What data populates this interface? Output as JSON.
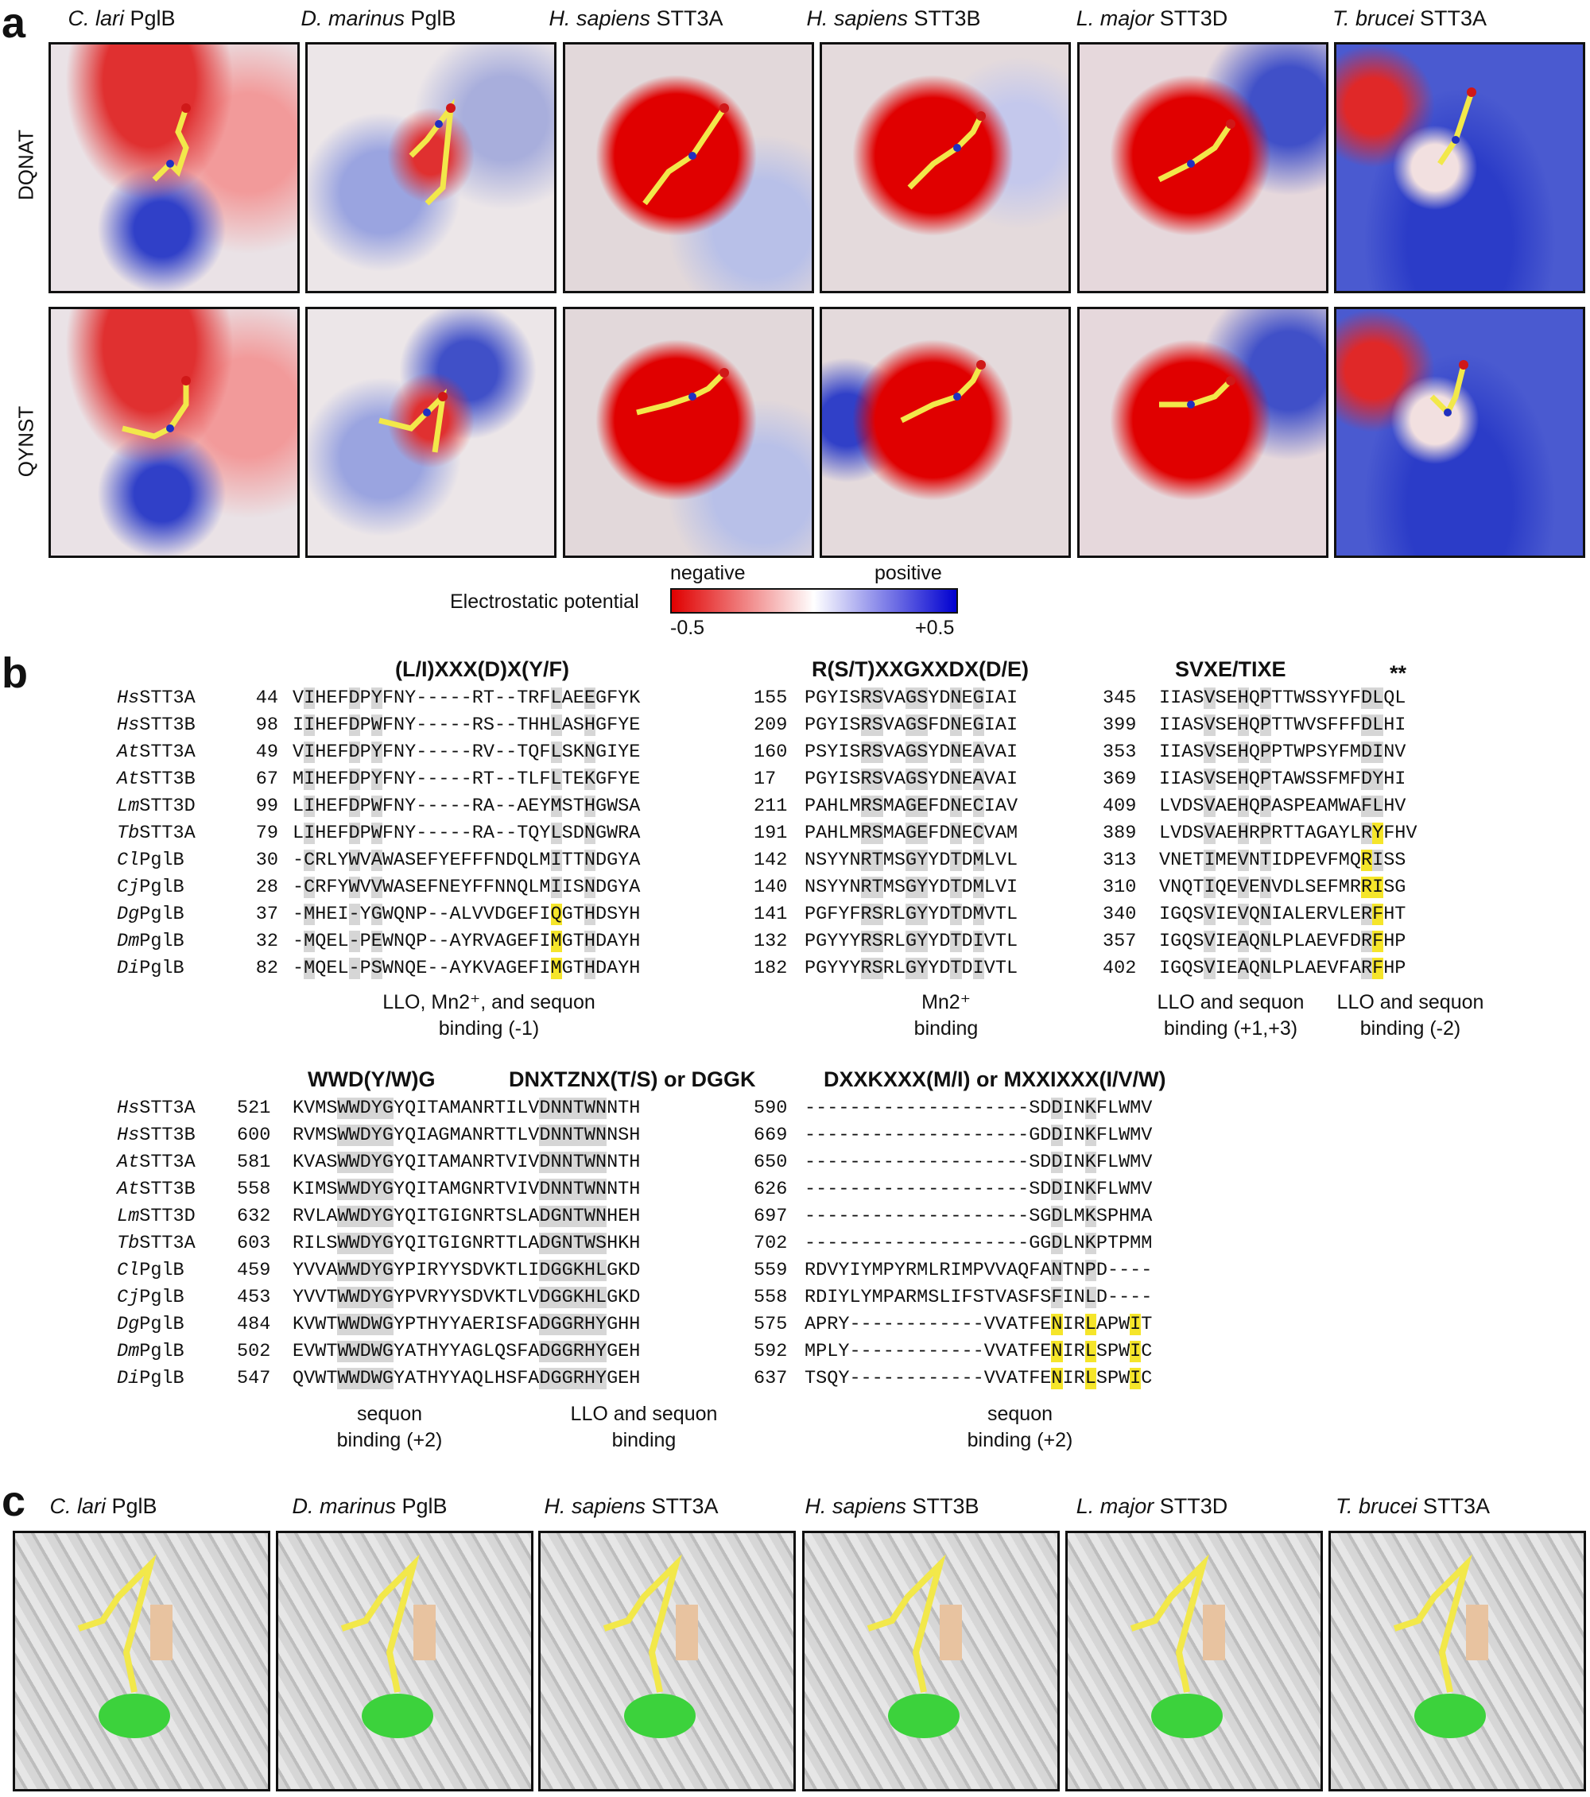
{
  "panels": {
    "a": "a",
    "b": "b",
    "c": "c"
  },
  "species": [
    {
      "italic": "C. lari",
      "rest": " PglB"
    },
    {
      "italic": "D. marinus",
      "rest": " PglB"
    },
    {
      "italic": "H. sapiens",
      "rest": " STT3A"
    },
    {
      "italic": "H. sapiens",
      "rest": " STT3B"
    },
    {
      "italic": "L. major",
      "rest": " STT3D"
    },
    {
      "italic": "T. brucei",
      "rest": " STT3A"
    }
  ],
  "rows": {
    "r1": "DQNAT",
    "r2": "QYNST"
  },
  "colorbar": {
    "title": "Electrostatic potential",
    "neg_label": "negative",
    "pos_label": "positive",
    "min": "-0.5",
    "max": "+0.5",
    "neg_color": "#e00000",
    "mid_color": "#ffffff",
    "pos_color": "#0000d0"
  },
  "alignment1": {
    "names": [
      {
        "it": "Hs",
        "rest": "STT3A"
      },
      {
        "it": "Hs",
        "rest": "STT3B"
      },
      {
        "it": "At",
        "rest": "STT3A"
      },
      {
        "it": "At",
        "rest": "STT3B"
      },
      {
        "it": "Lm",
        "rest": "STT3D"
      },
      {
        "it": "Tb",
        "rest": "STT3A"
      },
      {
        "it": "Cl",
        "rest": "PglB"
      },
      {
        "it": "Cj",
        "rest": "PglB"
      },
      {
        "it": "Dg",
        "rest": "PglB"
      },
      {
        "it": "Dm",
        "rest": "PglB"
      },
      {
        "it": "Di",
        "rest": "PglB"
      }
    ],
    "blocks": [
      {
        "motif": "(L/I)XXX(D)X(Y/F)",
        "starts": [
          "44",
          "98",
          "49",
          "67",
          "99",
          "79",
          "30",
          "28",
          "37",
          "32",
          "82"
        ],
        "seqs": [
          "VIHEFDPYFNY-----RT--TRFLAEEGFYK",
          "IIHEFDPWFNY-----RS--THHLASHGFYE",
          "VIHEFDPYFNY-----RV--TQFLSKNGIYE",
          "MIHEFDPYFNY-----RT--TLFLTEKGFYE",
          "LIHEFDPWFNY-----RA--AEYMSTHGWSA",
          "LIHEFDPWFNY-----RA--TQYLSDNGWRA",
          "-CRLYWVAWASEFYEFFFNDQLMITTNDGYA",
          "-CRFYWVVWASEFNEYFFNNQLMIISNDGYA",
          "-MHEI-YGWQNP--ALVVDGEFIQGTHDSYH",
          "-MQEL-PEWNQP--AYRVAGEFIMGTHDAYH",
          "-MQEL-PSWNQE--AYKVAGEFIMGTHDAYH"
        ],
        "caption": [
          "LLO, Mn2⁺, and sequon",
          "binding (-1)"
        ]
      },
      {
        "motif": "R(S/T)XXGXXDX(D/E)",
        "starts": [
          "155",
          "209",
          "160",
          "17",
          "211",
          "191",
          "142",
          "140",
          "141",
          "132",
          "182"
        ],
        "seqs": [
          "PGYISRSVAGSYDNEGIAI",
          "PGYISRSVAGSFDNEGIAI",
          "PSYISRSVAGSYDNEAVAI",
          "PGYISRSVAGSYDNEAVAI",
          "PAHLMRSMAGEFDNECIAV",
          "PAHLMRSMAGEFDNECVAM",
          "NSYYNRTMSGYYDTDMLVL",
          "NSYYNRTMSGYYDTDMLVI",
          "PGFYFRSRLGYYDTDMVTL",
          "PGYYYRSRLGYYDTDIVTL",
          "PGYYYRSRLGYYDTDIVTL"
        ],
        "caption": [
          "Mn2⁺",
          "binding"
        ]
      },
      {
        "motif": "SVXE/TIXE",
        "stars": "**",
        "starts": [
          "345",
          "399",
          "353",
          "369",
          "409",
          "389",
          "313",
          "310",
          "340",
          "357",
          "402"
        ],
        "seqs": [
          "IIASVSEHQPTTWSSYYFDLQL",
          "IIASVSEHQPTTWVSFFFDLHI",
          "IIASVSEHQPPTWPSYFMDINV",
          "IIASVSEHQPTAWSSFMFDYHI",
          "LVDSVAEHQPASPEAMWAFLHV",
          "LVDSVAEHRPRTTAGAYLRYFHV",
          "VNETIMEVNTIDPEVFMQRISS",
          "VNQTIQEVENVDLSEFMRRISG",
          "IGQSVIEVQNIALERVLERFHT",
          "IGQSVIEAQNLPLAEVFDRFHP",
          "IGQSVIEAQNLPLAEVFARFHP"
        ],
        "caption1": [
          "LLO and sequon",
          "binding (+1,+3)"
        ],
        "caption2": [
          "LLO and sequon",
          "binding (-2)"
        ]
      }
    ]
  },
  "alignment2": {
    "blocks": [
      {
        "motif1": "WWD(Y/W)G",
        "motif2": "DNXTZNX(T/S) or DGGK",
        "starts": [
          "521",
          "600",
          "581",
          "558",
          "632",
          "603",
          "459",
          "453",
          "484",
          "502",
          "547"
        ],
        "seqs": [
          "KVMSWWDYGYQITAMANRTILVDNNTWNNTH",
          "RVMSWWDYGYQIAGMANRTTLVDNNTWNNSH",
          "KVASWWDYGYQITAMANRTVIVDNNTWNNTH",
          "KIMSWWDYGYQITAMGNRTVIVDNNTWNNTH",
          "RVLAWWDYGYQITGIGNRTSLADGNTWNHEH",
          "RILSWWDYGYQITGIGNRTTLADGNTWSHKH",
          "YVVAWWDYGYPIRYYSDVKTLIDGGKHLGKD",
          "YVVTWWDYGYPVRYYSDVKTLVDGGKHLGKD",
          "KVWTWWDWGYPTHYYAERISFADGGRHYGHH",
          "EVWTWWDWGYATHYYAGLQSFADGGRHYGEH",
          "QVWTWWDWGYATHYYAQLHSFADGGRHYGEH"
        ],
        "caption1": [
          "sequon",
          "binding (+2)"
        ],
        "caption2": [
          "LLO and sequon",
          "binding"
        ]
      },
      {
        "motif": "DXXKXXX(M/I) or MXXIXXX(I/V/W)",
        "starts": [
          "590",
          "669",
          "650",
          "626",
          "697",
          "702",
          "559",
          "558",
          "575",
          "592",
          "637"
        ],
        "seqs": [
          "--------------------SDDINKFLWMV",
          "--------------------GDDINKFLWMV",
          "--------------------SDDINKFLWMV",
          "--------------------SDDINKFLWMV",
          "--------------------SGDLMKSPHMA",
          "--------------------GGDLNKPTPMM",
          "RDVYIYMPYRMLRIMPVVAQFANTNPD----",
          "RDIYLYMPARMSLIFSTVASFSFINLD----",
          "APRY------------VVATFENIRLAPWIT",
          "MPLY------------VVATFENIRLSPWIC",
          "TSQY------------VVATFENIRLSPWIC"
        ],
        "caption": [
          "sequon",
          "binding (+2)"
        ]
      }
    ]
  }
}
